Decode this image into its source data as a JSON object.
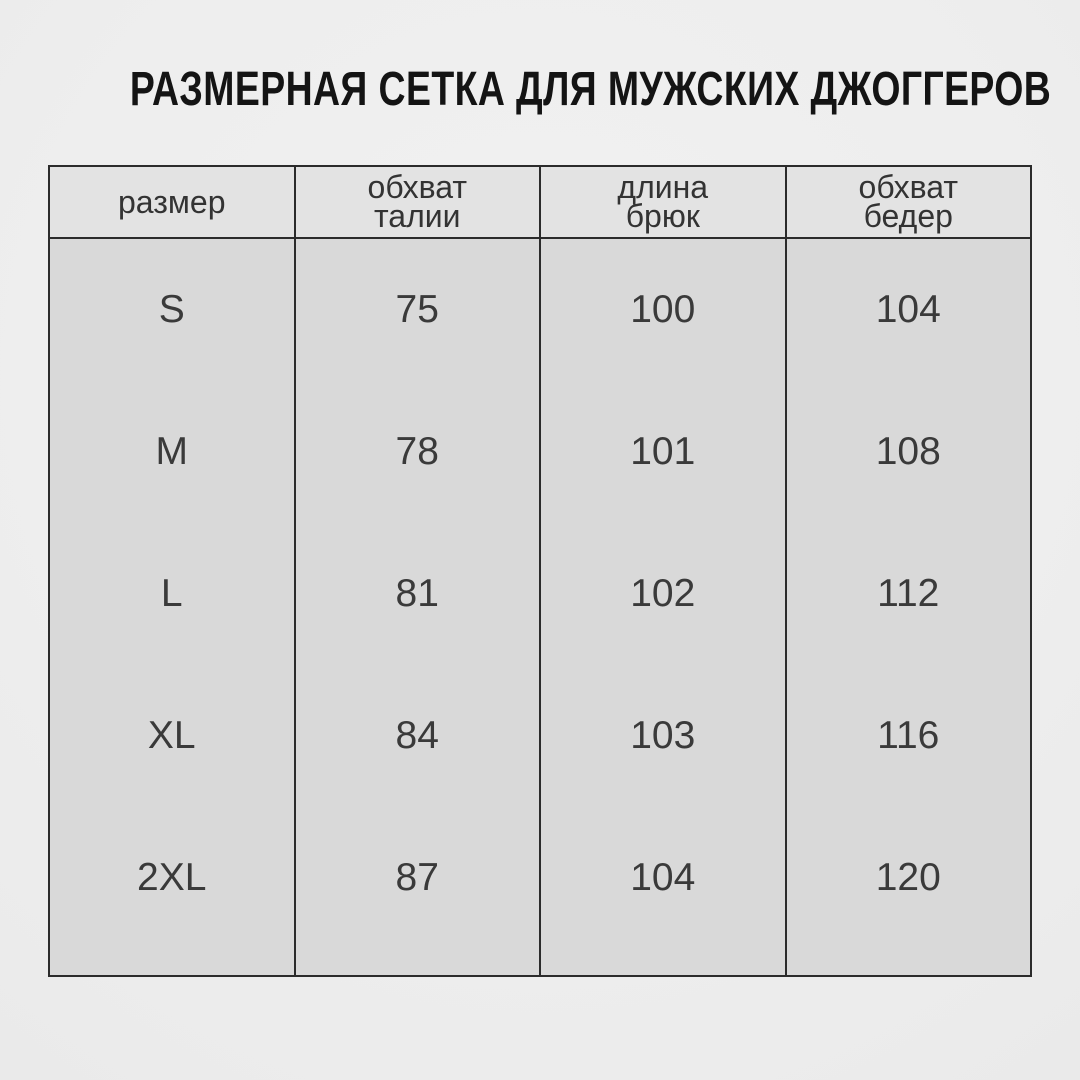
{
  "title": "РАЗМЕРНАЯ СЕТКА ДЛЯ МУЖСКИХ ДЖОГГЕРОВ",
  "table": {
    "headers": [
      {
        "line1": "размер",
        "line2": ""
      },
      {
        "line1": "обхват",
        "line2": "талии"
      },
      {
        "line1": "длина",
        "line2": "брюк"
      },
      {
        "line1": "обхват",
        "line2": "бедер"
      }
    ],
    "rows": [
      {
        "size": "S",
        "waist": "75",
        "length": "100",
        "hips": "104"
      },
      {
        "size": "M",
        "waist": "78",
        "length": "101",
        "hips": "108"
      },
      {
        "size": "L",
        "waist": "81",
        "length": "102",
        "hips": "112"
      },
      {
        "size": "XL",
        "waist": "84",
        "length": "103",
        "hips": "116"
      },
      {
        "size": "2XL",
        "waist": "87",
        "length": "104",
        "hips": "120"
      }
    ]
  },
  "chart_data": {
    "type": "table",
    "title": "РАЗМЕРНАЯ СЕТКА ДЛЯ МУЖСКИХ ДЖОГГЕРОВ",
    "columns": [
      "размер",
      "обхват талии",
      "длина брюк",
      "обхват бедер"
    ],
    "rows": [
      [
        "S",
        75,
        100,
        104
      ],
      [
        "M",
        78,
        101,
        108
      ],
      [
        "L",
        81,
        102,
        112
      ],
      [
        "XL",
        84,
        103,
        116
      ],
      [
        "2XL",
        87,
        104,
        120
      ]
    ]
  },
  "colors": {
    "page_bg": "#eeeeee",
    "table_bg": "#d9d9d9",
    "header_bg": "#e3e3e3",
    "border": "#2b2b2b",
    "title_text": "#141414",
    "cell_text": "#3a3a3a"
  }
}
